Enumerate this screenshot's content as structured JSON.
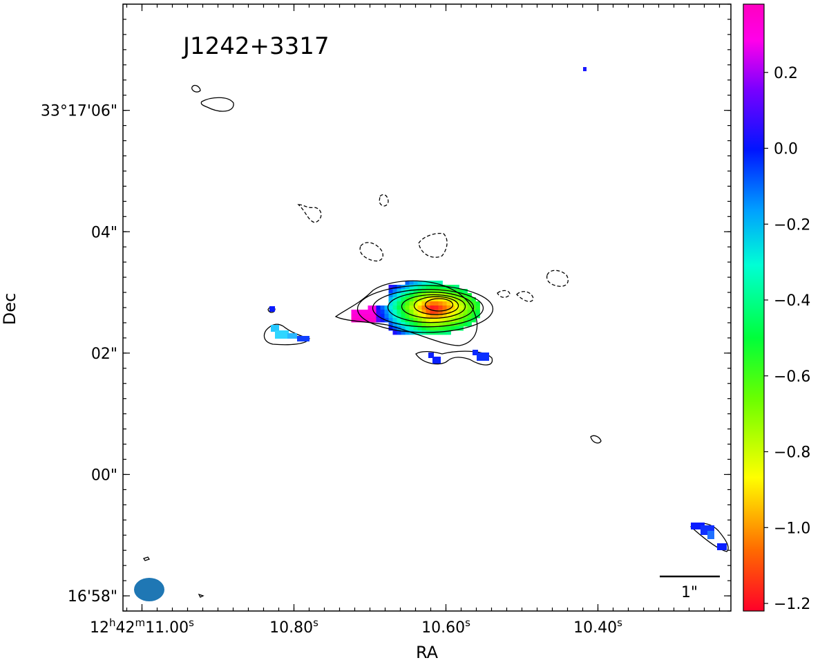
{
  "chart_data": {
    "type": "heatmap",
    "title": "J1242+3317",
    "xlabel": "RA",
    "ylabel": "Dec",
    "grid": false,
    "x_ticks": [
      {
        "value": 11.0,
        "h": "12",
        "m": "42",
        "s": "11.00",
        "sup_s": "s"
      },
      {
        "value": 10.8,
        "h": "",
        "m": "",
        "s": "10.80",
        "sup_s": "s"
      },
      {
        "value": 10.6,
        "h": "",
        "m": "",
        "s": "10.60",
        "sup_s": "s"
      },
      {
        "value": 10.4,
        "h": "",
        "m": "",
        "s": "10.40",
        "sup_s": "s"
      }
    ],
    "y_ticks": [
      {
        "value": 6,
        "label": "33°17'06\""
      },
      {
        "value": 4,
        "label": "04\""
      },
      {
        "value": 2,
        "label": "02\""
      },
      {
        "value": 0,
        "label": "00\""
      },
      {
        "value": -2,
        "label": "16'58\""
      }
    ],
    "xlim": [
      11.025,
      10.225
    ],
    "ylim": [
      -2.25,
      7.75
    ],
    "colorbar": {
      "vmin": -1.22,
      "vmax": 0.38,
      "ticks": [
        0.2,
        0.0,
        -0.2,
        -0.4,
        -0.6,
        -0.8,
        -1.0,
        -1.2
      ],
      "tick_labels": [
        "0.2",
        "0.0",
        "−0.2",
        "−0.4",
        "−0.6",
        "−0.8",
        "−1.0",
        "−1.2"
      ],
      "colormap": "gist_rainbow"
    },
    "scale_bar": {
      "label": "1\"",
      "length_arcsec": 1
    },
    "beam": {
      "color": "#1f77b4"
    },
    "colors": {
      "solid_contour": "#000000",
      "dashed_contour": "#000000"
    },
    "source": {
      "peak_x": 10.62,
      "peak_y": 2.75,
      "core_index": -1.2,
      "edge_index": 0.35
    }
  }
}
